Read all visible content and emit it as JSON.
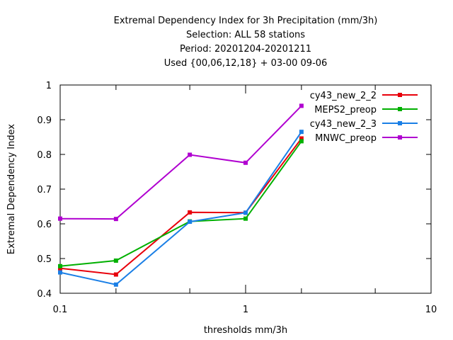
{
  "chart_data": {
    "type": "line",
    "title_lines": [
      "Extremal Dependency Index  for 3h Precipitation (mm/3h)",
      "Selection: ALL      58 stations",
      "Period: 20201204-20201211",
      "Used {00,06,12,18} + 03-00 09-06"
    ],
    "xlabel": "thresholds mm/3h",
    "ylabel": "Extremal Dependency Index",
    "xscale": "log",
    "xlim": [
      0.1,
      10
    ],
    "ylim": [
      0.4,
      1.0
    ],
    "x_ticks": [
      "0.1",
      "1",
      "10"
    ],
    "y_ticks": [
      "0.4",
      "0.5",
      "0.6",
      "0.7",
      "0.8",
      "0.9",
      "1"
    ],
    "x": [
      0.1,
      0.2,
      0.5,
      1,
      2
    ],
    "legend_position": "top-right",
    "series": [
      {
        "name": "cy43_new_2_2",
        "color": "#e8000b",
        "values": [
          0.472,
          0.454,
          0.633,
          0.632,
          0.846
        ]
      },
      {
        "name": "MEPS2_preop",
        "color": "#00b000",
        "values": [
          0.478,
          0.494,
          0.607,
          0.615,
          0.838
        ]
      },
      {
        "name": "cy43_new_2_3",
        "color": "#1a7fe6",
        "values": [
          0.46,
          0.425,
          0.606,
          0.632,
          0.865
        ]
      },
      {
        "name": "MNWC_preop",
        "color": "#b000d0",
        "values": [
          0.615,
          0.614,
          0.799,
          0.776,
          0.94
        ]
      }
    ]
  }
}
